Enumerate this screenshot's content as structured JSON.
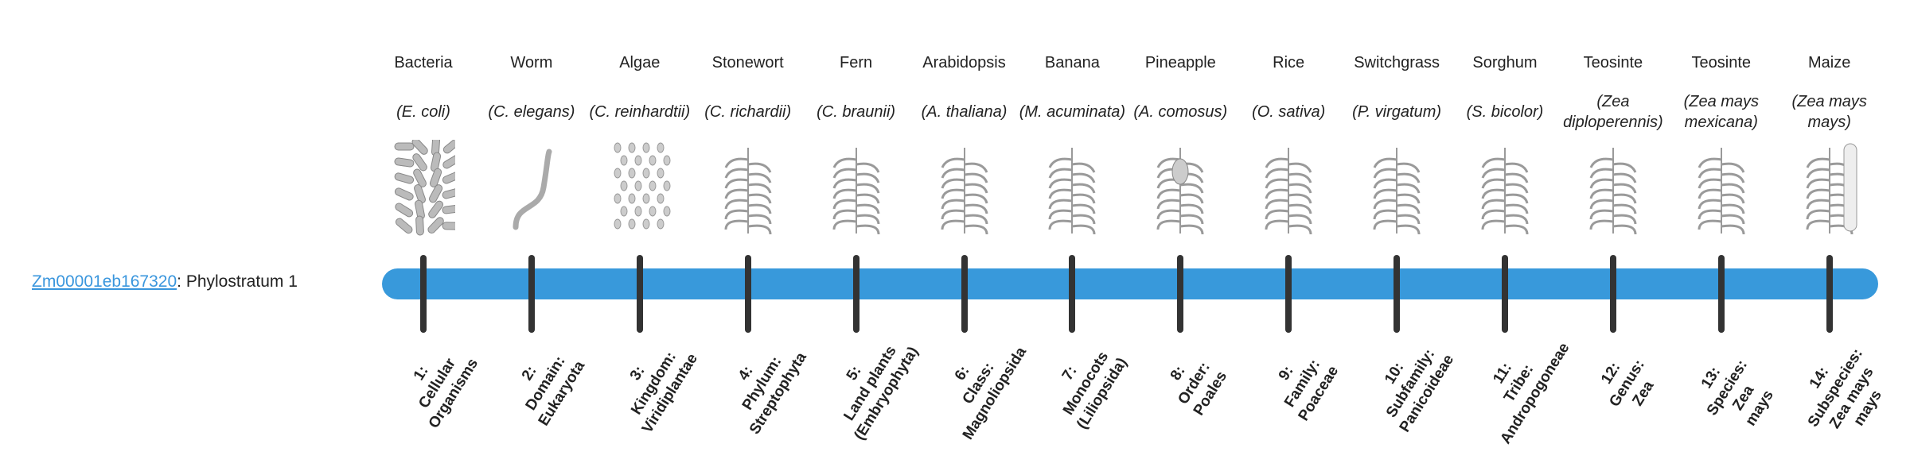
{
  "gene": {
    "id": "Zm00001eb167320",
    "suffix": ": Phylostratum 1"
  },
  "colors": {
    "bar": "#3899db",
    "tick": "#333333",
    "link": "#3a96dd",
    "illustration": "#9a9a9a"
  },
  "strata": [
    {
      "common": "Bacteria",
      "species": "(E. coli)",
      "icon": "bacteria-icon",
      "label": [
        "1:",
        "Cellular",
        "Organisms"
      ]
    },
    {
      "common": "Worm",
      "species": "(C. elegans)",
      "icon": "worm-icon",
      "label": [
        "2:",
        "Domain:",
        "Eukaryota"
      ]
    },
    {
      "common": "Algae",
      "species": "(C. reinhardtii)",
      "icon": "algae-icon",
      "label": [
        "3:",
        "Kingdom:",
        "Viridiplantae"
      ]
    },
    {
      "common": "Stonewort",
      "species": "(C. richardii)",
      "icon": "stonewort-icon",
      "label": [
        "4:",
        "Phylum:",
        "Streptophyta"
      ]
    },
    {
      "common": "Fern",
      "species": "(C. braunii)",
      "icon": "fern-icon",
      "label": [
        "5:",
        "Land plants",
        "(Embryophyta)"
      ]
    },
    {
      "common": "Arabidopsis",
      "species": "(A. thaliana)",
      "icon": "arabidopsis-icon",
      "label": [
        "6:",
        "Class:",
        "Magnoliopsida"
      ]
    },
    {
      "common": "Banana",
      "species": "(M. acuminata)",
      "icon": "banana-plant-icon",
      "label": [
        "7:",
        "Monocots",
        "(Liliopsida)"
      ]
    },
    {
      "common": "Pineapple",
      "species": "(A. comosus)",
      "icon": "pineapple-icon",
      "label": [
        "8:",
        "Order:",
        "Poales"
      ]
    },
    {
      "common": "Rice",
      "species": "(O. sativa)",
      "icon": "rice-icon",
      "label": [
        "9:",
        "Family:",
        "Poaceae"
      ]
    },
    {
      "common": "Switchgrass",
      "species": "(P. virgatum)",
      "icon": "switchgrass-icon",
      "label": [
        "10:",
        "Subfamily:",
        "Panicoideae"
      ]
    },
    {
      "common": "Sorghum",
      "species": "(S. bicolor)",
      "icon": "sorghum-icon",
      "label": [
        "11:",
        "Tribe:",
        "Andropogoneae"
      ]
    },
    {
      "common": "Teosinte",
      "species": "(Zea diploperennis)",
      "icon": "teosinte-icon",
      "label": [
        "12:",
        "Genus:",
        "Zea"
      ]
    },
    {
      "common": "Teosinte",
      "species": "(Zea mays mexicana)",
      "icon": "teosinte-icon",
      "label": [
        "13:",
        "Species:",
        "Zea",
        "mays"
      ]
    },
    {
      "common": "Maize",
      "species": "(Zea mays mays)",
      "icon": "maize-icon",
      "label": [
        "14:",
        "Subspecies:",
        "Zea mays",
        "mays"
      ]
    }
  ]
}
